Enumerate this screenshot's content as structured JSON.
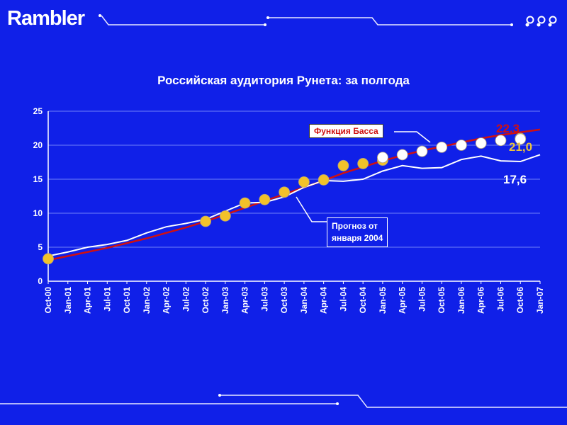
{
  "brand": {
    "logo_text": "Rambler"
  },
  "colors": {
    "background": "#1020e8",
    "bass_line": "#d01010",
    "forecast_line": "#ffffff",
    "dot_gold": "#f2c22a",
    "dot_white": "#ffffff",
    "label_gold": "#e8c040"
  },
  "chart_data": {
    "type": "line",
    "title": "Российская аудитория Рунета: за полгода",
    "xlabel": "",
    "ylabel": "",
    "ylim": [
      0,
      25
    ],
    "yticks": [
      0,
      5,
      10,
      15,
      20,
      25
    ],
    "grid": true,
    "categories": [
      "Oct-00",
      "Jan-01",
      "Apr-01",
      "Jul-01",
      "Oct-01",
      "Jan-02",
      "Apr-02",
      "Jul-02",
      "Oct-02",
      "Jan-03",
      "Apr-03",
      "Jul-03",
      "Oct-03",
      "Jan-04",
      "Apr-04",
      "Jul-04",
      "Oct-04",
      "Jan-05",
      "Apr-05",
      "Jul-05",
      "Oct-05",
      "Jan-06",
      "Apr-06",
      "Jul-06",
      "Oct-06",
      "Jan-07"
    ],
    "series": [
      {
        "name": "Функция Басса",
        "style": "line",
        "color": "#d01010",
        "values": [
          3.1,
          3.7,
          4.3,
          4.9,
          5.6,
          6.3,
          7.1,
          7.9,
          8.8,
          9.8,
          10.8,
          11.8,
          12.8,
          13.8,
          14.8,
          15.9,
          16.8,
          17.7,
          18.5,
          19.2,
          19.8,
          20.4,
          21.0,
          21.5,
          21.9,
          22.3
        ]
      },
      {
        "name": "Прогноз от января 2004",
        "style": "line",
        "color": "#ffffff",
        "values": [
          3.7,
          4.3,
          5.0,
          5.4,
          6.0,
          7.1,
          8.0,
          8.5,
          9.1,
          10.3,
          11.5,
          11.6,
          12.4,
          13.8,
          14.8,
          14.7,
          15.0,
          16.2,
          17.0,
          16.6,
          16.7,
          17.9,
          18.4,
          17.7,
          17.6,
          18.6
        ]
      },
      {
        "name": "",
        "style": "dots",
        "color": "#f2c22a",
        "points": [
          [
            0,
            3.3
          ],
          [
            8,
            8.8
          ],
          [
            9,
            9.6
          ],
          [
            10,
            11.5
          ],
          [
            11,
            12.0
          ],
          [
            12,
            13.1
          ],
          [
            13,
            14.6
          ],
          [
            14,
            14.9
          ],
          [
            15,
            17.0
          ],
          [
            16,
            17.3
          ],
          [
            17,
            17.8
          ],
          [
            24,
            21.0
          ]
        ]
      },
      {
        "name": "",
        "style": "dots",
        "color": "#ffffff",
        "points": [
          [
            17,
            18.2
          ],
          [
            18,
            18.6
          ],
          [
            19,
            19.1
          ],
          [
            20,
            19.7
          ],
          [
            21,
            20.0
          ],
          [
            22,
            20.3
          ],
          [
            23,
            20.7
          ],
          [
            24,
            20.9
          ]
        ]
      }
    ],
    "annotations": {
      "bass_label": "Функция Басса",
      "forecast_label_line1": "Прогноз от",
      "forecast_label_line2": "января 2004",
      "value_bass": "22,3",
      "value_actual": "21,0",
      "value_forecast": "17,6"
    }
  }
}
